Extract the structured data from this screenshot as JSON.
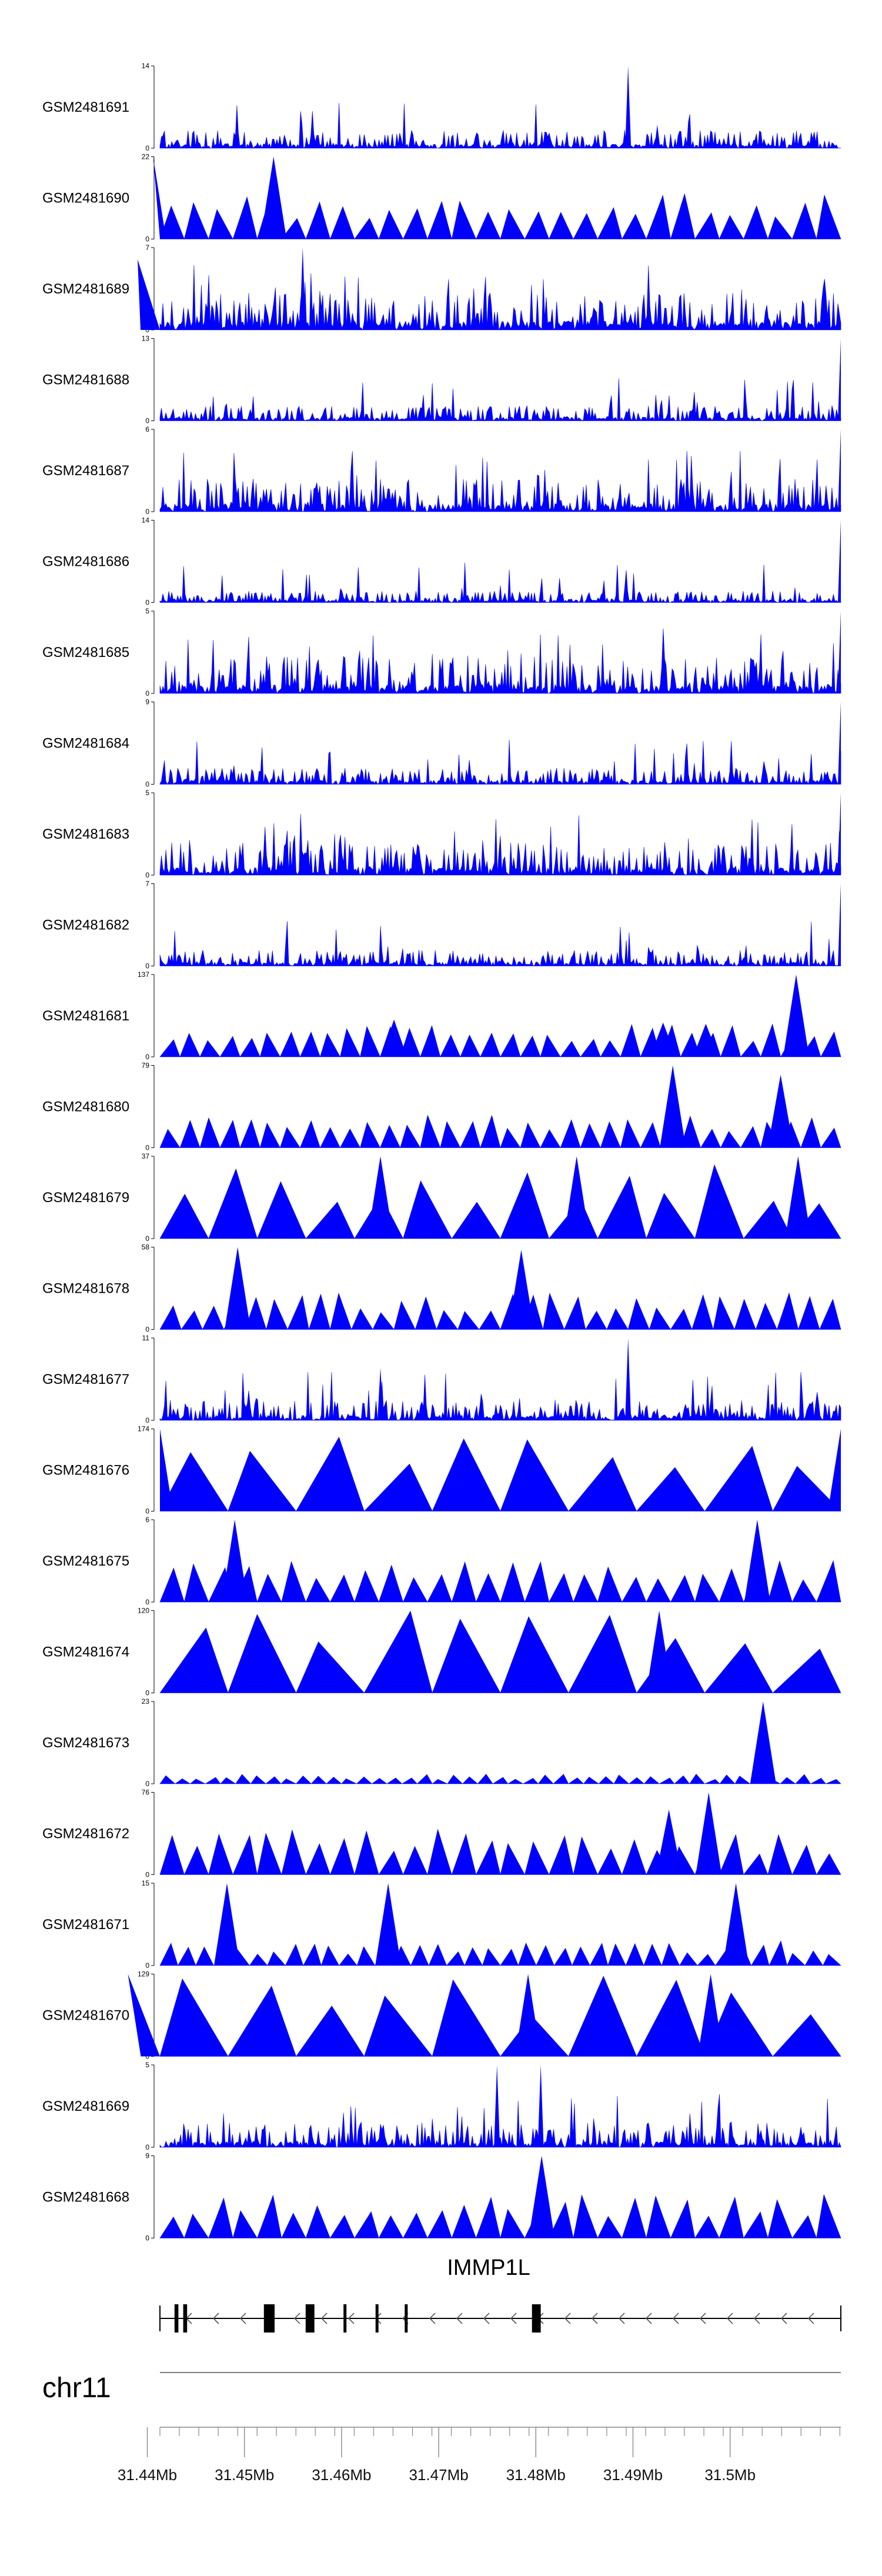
{
  "chart_data": {
    "type": "area",
    "title": "",
    "colors": {
      "track": "#0000ff",
      "axis": "#000000",
      "gene": "#000000",
      "chrom_line": "#808080"
    },
    "tracks": [
      {
        "name": "GSM2481691",
        "ymax": 14,
        "peaks": [
          [
            31.4895,
            14
          ],
          [
            31.4925,
            4
          ]
        ],
        "style": "dense",
        "level": 0.22
      },
      {
        "name": "GSM2481690",
        "ymax": 22,
        "peaks": [
          [
            31.4406,
            22
          ],
          [
            31.453,
            22
          ]
        ],
        "style": "tri",
        "level": 0.55
      },
      {
        "name": "GSM2481689",
        "ymax": 7,
        "peaks": [
          [
            31.456,
            7
          ],
          [
            31.439,
            6
          ]
        ],
        "style": "dense",
        "level": 0.45
      },
      {
        "name": "GSM2481688",
        "ymax": 13,
        "peaks": [
          [
            31.5114,
            13
          ]
        ],
        "style": "dense",
        "level": 0.18
      },
      {
        "name": "GSM2481687",
        "ymax": 6,
        "peaks": [
          [
            31.5114,
            6
          ]
        ],
        "style": "dense",
        "level": 0.4
      },
      {
        "name": "GSM2481686",
        "ymax": 14,
        "peaks": [
          [
            31.5114,
            14
          ]
        ],
        "style": "dense",
        "level": 0.14
      },
      {
        "name": "GSM2481685",
        "ymax": 5,
        "peaks": [
          [
            31.5114,
            5
          ]
        ],
        "style": "dense",
        "level": 0.45
      },
      {
        "name": "GSM2481684",
        "ymax": 9,
        "peaks": [
          [
            31.5114,
            9
          ]
        ],
        "style": "dense",
        "level": 0.2
      },
      {
        "name": "GSM2481683",
        "ymax": 5,
        "peaks": [
          [
            31.5114,
            5
          ]
        ],
        "style": "dense",
        "level": 0.4
      },
      {
        "name": "GSM2481682",
        "ymax": 7,
        "peaks": [
          [
            31.5114,
            7
          ]
        ],
        "style": "dense",
        "level": 0.2
      },
      {
        "name": "GSM2481681",
        "ymax": 137,
        "peaks": [
          [
            31.4654,
            62
          ],
          [
            31.4931,
            57
          ],
          [
            31.4975,
            55
          ],
          [
            31.5068,
            137
          ]
        ],
        "style": "tri",
        "level": 0.4
      },
      {
        "name": "GSM2481680",
        "ymax": 79,
        "peaks": [
          [
            31.4941,
            79
          ],
          [
            31.5052,
            70
          ]
        ],
        "style": "tri",
        "level": 0.4
      },
      {
        "name": "GSM2481679",
        "ymax": 37,
        "peaks": [
          [
            31.464,
            37
          ],
          [
            31.4842,
            37
          ],
          [
            31.507,
            37
          ]
        ],
        "style": "tri",
        "level": 0.9
      },
      {
        "name": "GSM2481678",
        "ymax": 58,
        "peaks": [
          [
            31.4493,
            58
          ],
          [
            31.4785,
            56
          ]
        ],
        "style": "tri",
        "level": 0.45
      },
      {
        "name": "GSM2481677",
        "ymax": 11,
        "peaks": [
          [
            31.4895,
            11
          ],
          [
            31.464,
            7
          ]
        ],
        "style": "dense",
        "level": 0.25
      },
      {
        "name": "GSM2481676",
        "ymax": 174,
        "peaks": [
          [
            31.4413,
            174
          ],
          [
            31.5114,
            174
          ]
        ],
        "style": "tri",
        "level": 1.0
      },
      {
        "name": "GSM2481675",
        "ymax": 6,
        "peaks": [
          [
            31.449,
            6
          ],
          [
            31.5028,
            6
          ]
        ],
        "style": "tri",
        "level": 0.55
      },
      {
        "name": "GSM2481674",
        "ymax": 120,
        "peaks": [
          [
            31.4927,
            120
          ]
        ],
        "style": "tri",
        "level": 1.0
      },
      {
        "name": "GSM2481673",
        "ymax": 23,
        "peaks": [
          [
            31.5034,
            23
          ]
        ],
        "style": "tri",
        "level": 0.12
      },
      {
        "name": "GSM2481672",
        "ymax": 76,
        "peaks": [
          [
            31.4937,
            60
          ],
          [
            31.4978,
            76
          ]
        ],
        "style": "tri",
        "level": 0.55
      },
      {
        "name": "GSM2481671",
        "ymax": 15,
        "peaks": [
          [
            31.4482,
            15
          ],
          [
            31.4648,
            15
          ],
          [
            31.5006,
            15
          ]
        ],
        "style": "tri",
        "level": 0.3
      },
      {
        "name": "GSM2481670",
        "ymax": 129,
        "peaks": [
          [
            31.438,
            129
          ],
          [
            31.4792,
            129
          ],
          [
            31.498,
            129
          ]
        ],
        "style": "tri",
        "level": 1.0
      },
      {
        "name": "GSM2481669",
        "ymax": 5,
        "peaks": [
          [
            31.476,
            5
          ],
          [
            31.4805,
            5
          ]
        ],
        "style": "dense",
        "level": 0.3
      },
      {
        "name": "GSM2481668",
        "ymax": 9,
        "peaks": [
          [
            31.4806,
            9
          ]
        ],
        "style": "tri",
        "level": 0.55
      }
    ],
    "gene": {
      "name": "IMMP1L",
      "strand": "-",
      "exons": [
        [
          31.4428,
          31.4432
        ],
        [
          31.4437,
          31.4441
        ],
        [
          31.452,
          31.4531
        ],
        [
          31.4563,
          31.4572
        ],
        [
          31.4602,
          31.4605
        ],
        [
          31.4635,
          31.4638
        ],
        [
          31.4665,
          31.4668
        ],
        [
          31.4796,
          31.4805
        ]
      ]
    },
    "chromosome": {
      "label": "chr11",
      "xlabel": "",
      "xlim": [
        31.4413,
        31.5114
      ],
      "tick_labels": [
        "31.44Mb",
        "31.45Mb",
        "31.46Mb",
        "31.47Mb",
        "31.48Mb",
        "31.49Mb",
        "31.5Mb"
      ],
      "tick_values": [
        31.44,
        31.45,
        31.46,
        31.47,
        31.48,
        31.49,
        31.5
      ],
      "minor_step": 0.002
    }
  }
}
